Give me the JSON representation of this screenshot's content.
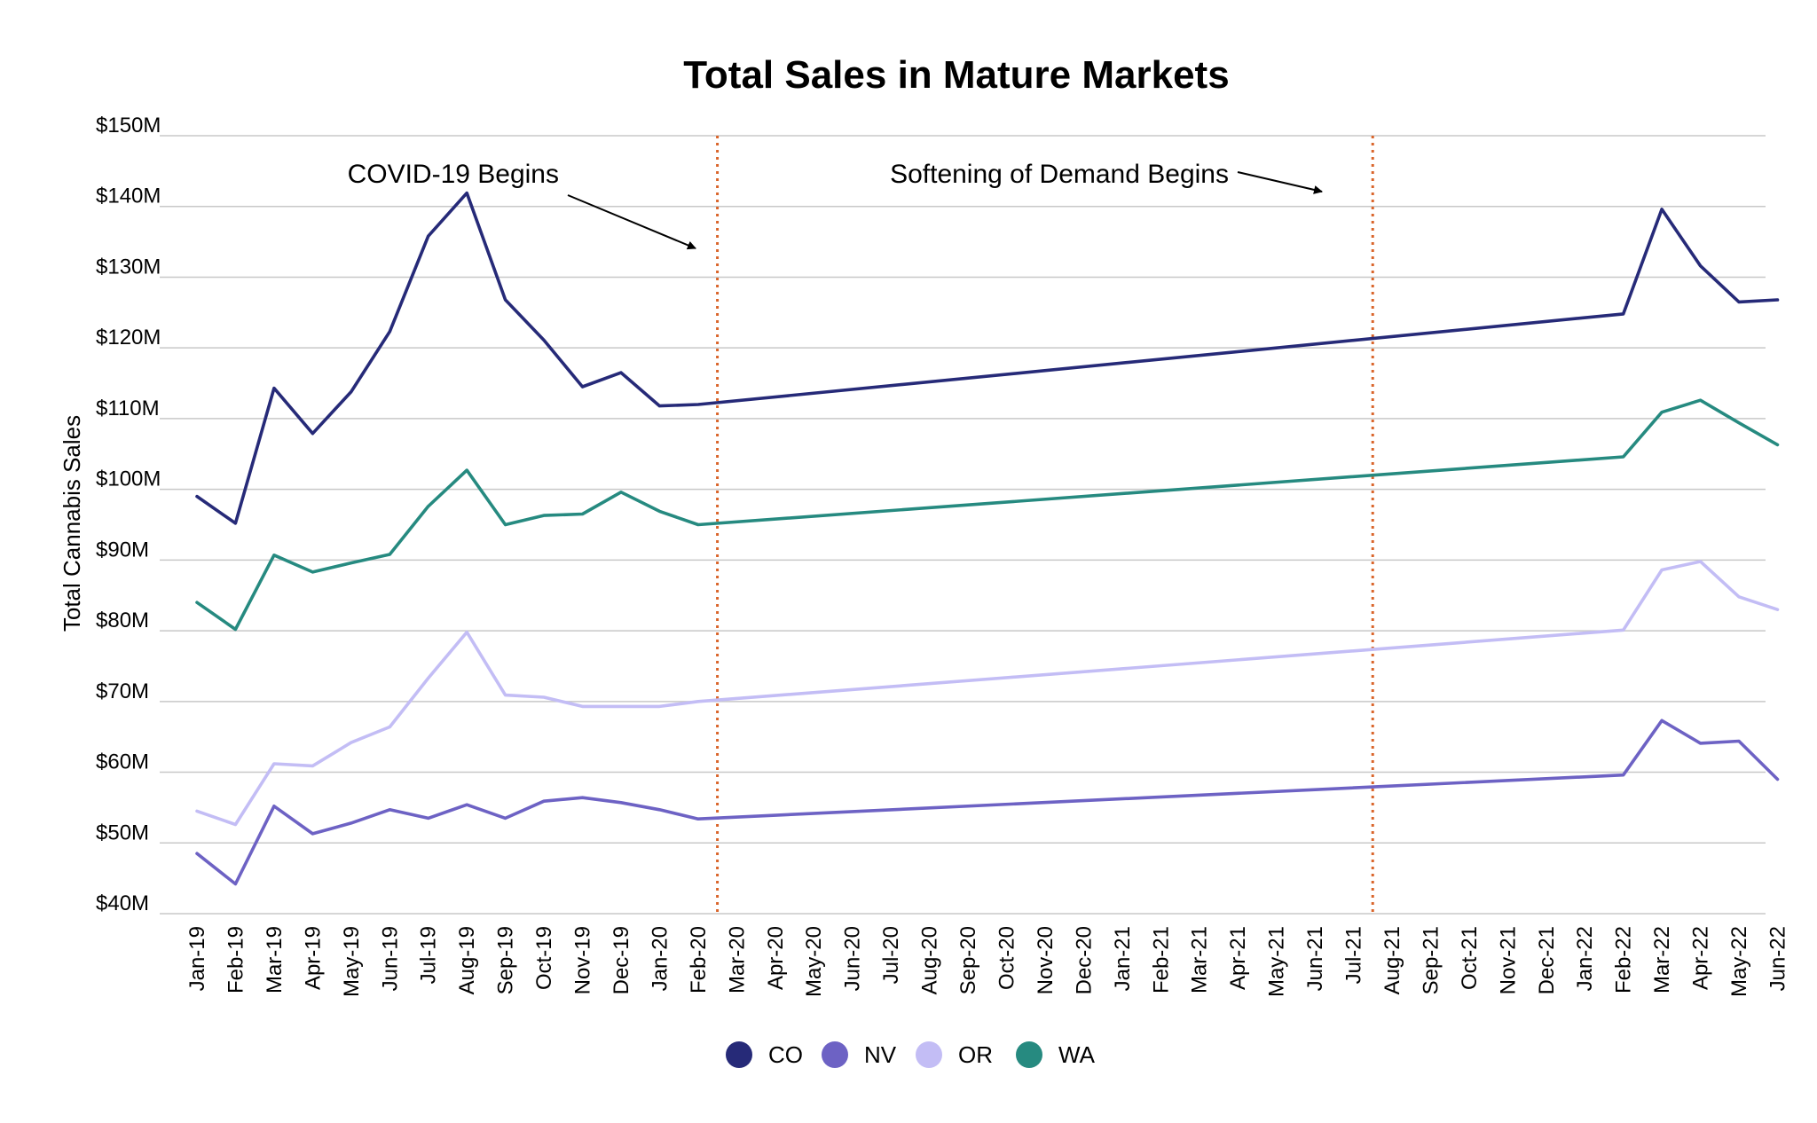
{
  "chart_data": {
    "type": "line",
    "title": "Total Sales in Mature Markets",
    "xlabel": "",
    "ylabel": "Total Cannabis Sales",
    "ylim": [
      40,
      150
    ],
    "y_ticks": [
      "$40M",
      "$50M",
      "$60M",
      "$70M",
      "$80M",
      "$90M",
      "$100M",
      "$110M",
      "$120M",
      "$130M",
      "$140M",
      "$150M"
    ],
    "grid": true,
    "legend_position": "bottom",
    "categories": [
      "Jan-19",
      "Feb-19",
      "Mar-19",
      "Apr-19",
      "May-19",
      "Jun-19",
      "Jul-19",
      "Aug-19",
      "Sep-19",
      "Oct-19",
      "Nov-19",
      "Dec-19",
      "Jan-20",
      "Feb-20",
      "Mar-20",
      "Apr-20",
      "May-20",
      "Jun-20",
      "Jul-20",
      "Aug-20",
      "Sep-20",
      "Oct-20",
      "Nov-20",
      "Dec-20",
      "Jan-21",
      "Feb-21",
      "Mar-21",
      "Apr-21",
      "May-21",
      "Jun-21",
      "Jul-21",
      "Aug-21",
      "Sep-21",
      "Oct-21",
      "Nov-21",
      "Dec-21",
      "Jan-22",
      "Feb-22",
      "Mar-22",
      "Apr-22",
      "May-22",
      "Jun-22"
    ],
    "series": [
      {
        "name": "CO",
        "color": "#262a78",
        "points": [
          [
            0,
            99.0
          ],
          [
            1,
            95.2
          ],
          [
            2,
            114.3
          ],
          [
            3,
            107.9
          ],
          [
            4,
            113.8
          ],
          [
            5,
            122.3
          ],
          [
            6,
            135.8
          ],
          [
            7,
            141.9
          ],
          [
            8,
            126.8
          ],
          [
            9,
            121.1
          ],
          [
            10,
            114.5
          ],
          [
            11,
            116.5
          ],
          [
            12,
            111.8
          ],
          [
            13,
            112.0
          ],
          [
            37,
            124.8
          ],
          [
            38,
            139.6
          ],
          [
            39,
            131.6
          ],
          [
            40,
            126.5
          ],
          [
            41,
            126.8
          ]
        ]
      },
      {
        "name": "NV",
        "color": "#6d62c4",
        "points": [
          [
            0,
            48.5
          ],
          [
            1,
            44.2
          ],
          [
            2,
            55.2
          ],
          [
            3,
            51.3
          ],
          [
            4,
            52.8
          ],
          [
            5,
            54.7
          ],
          [
            6,
            53.5
          ],
          [
            7,
            55.4
          ],
          [
            8,
            53.5
          ],
          [
            9,
            55.9
          ],
          [
            10,
            56.4
          ],
          [
            11,
            55.7
          ],
          [
            12,
            54.7
          ],
          [
            13,
            53.4
          ],
          [
            37,
            59.6
          ],
          [
            38,
            67.3
          ],
          [
            39,
            64.1
          ],
          [
            40,
            64.4
          ],
          [
            41,
            59.0
          ]
        ]
      },
      {
        "name": "OR",
        "color": "#c3bdf5",
        "points": [
          [
            0,
            54.5
          ],
          [
            1,
            52.6
          ],
          [
            2,
            61.2
          ],
          [
            3,
            60.9
          ],
          [
            4,
            64.2
          ],
          [
            5,
            66.4
          ],
          [
            6,
            73.3
          ],
          [
            7,
            79.8
          ],
          [
            8,
            70.9
          ],
          [
            9,
            70.6
          ],
          [
            10,
            69.3
          ],
          [
            11,
            69.3
          ],
          [
            12,
            69.3
          ],
          [
            13,
            70.0
          ],
          [
            37,
            80.1
          ],
          [
            38,
            88.6
          ],
          [
            39,
            89.8
          ],
          [
            40,
            84.8
          ],
          [
            41,
            83.0
          ]
        ]
      },
      {
        "name": "WA",
        "color": "#268a80",
        "points": [
          [
            0,
            84.0
          ],
          [
            1,
            80.2
          ],
          [
            2,
            90.7
          ],
          [
            3,
            88.3
          ],
          [
            4,
            89.6
          ],
          [
            5,
            90.8
          ],
          [
            6,
            97.6
          ],
          [
            7,
            102.7
          ],
          [
            8,
            95.0
          ],
          [
            9,
            96.3
          ],
          [
            10,
            96.5
          ],
          [
            11,
            99.6
          ],
          [
            12,
            96.9
          ],
          [
            13,
            95.0
          ],
          [
            37,
            104.6
          ],
          [
            38,
            110.9
          ],
          [
            39,
            112.6
          ],
          [
            40,
            109.4
          ],
          [
            41,
            106.3
          ]
        ]
      }
    ],
    "annotations": [
      {
        "text": "COVID-19 Begins",
        "event_x": 13.5
      },
      {
        "text": "Softening of Demand Begins",
        "event_x": 30.5
      }
    ],
    "event_line_color": "#d9652b"
  }
}
